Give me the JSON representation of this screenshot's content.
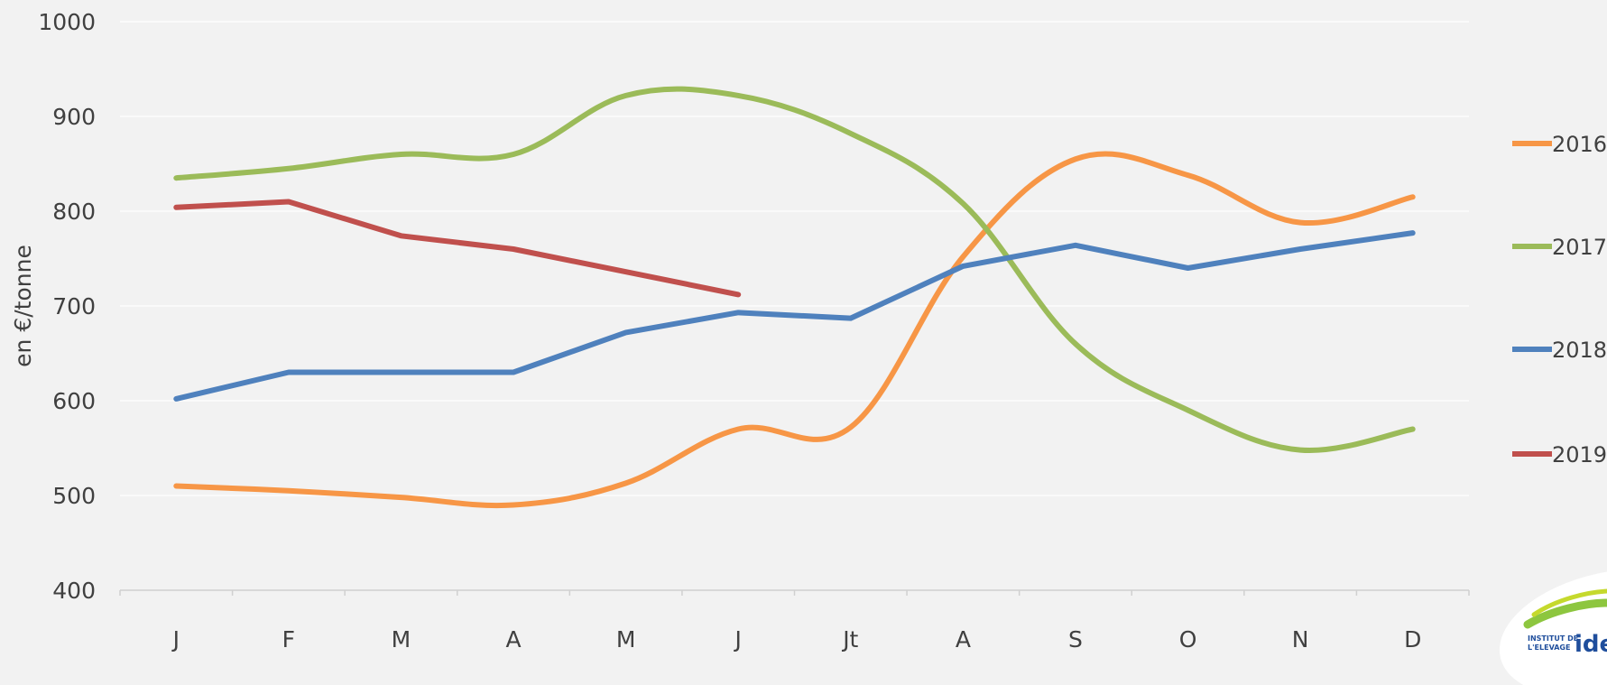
{
  "chart_data": {
    "type": "line",
    "title": "",
    "ylabel": "en €/tonne",
    "xlabel": "",
    "ylim": [
      400,
      1000
    ],
    "yticks": [
      400,
      500,
      600,
      700,
      800,
      900,
      1000
    ],
    "categories": [
      "J",
      "F",
      "M",
      "A",
      "M",
      "J",
      "Jt",
      "A",
      "S",
      "O",
      "N",
      "D"
    ],
    "series": [
      {
        "name": "2016",
        "color": "#f79646",
        "values": [
          510,
          505,
          498,
          490,
          513,
          570,
          572,
          752,
          855,
          838,
          788,
          815
        ]
      },
      {
        "name": "2017",
        "color": "#9bbb59",
        "values": [
          835,
          845,
          860,
          860,
          922,
          922,
          882,
          808,
          660,
          590,
          548,
          570
        ]
      },
      {
        "name": "2018",
        "color": "#4f81bd",
        "values": [
          602,
          630,
          630,
          630,
          672,
          693,
          687,
          742,
          764,
          740,
          760,
          777
        ]
      },
      {
        "name": "2019",
        "color": "#c0504d",
        "values": [
          804,
          810,
          774,
          760,
          null,
          712,
          null,
          null,
          null,
          null,
          null,
          null
        ]
      }
    ],
    "grid": true,
    "legend_position": "right"
  },
  "logo": {
    "line1": "INSTITUT DE",
    "line2": "L'ELEVAGE",
    "brand": "idele"
  }
}
